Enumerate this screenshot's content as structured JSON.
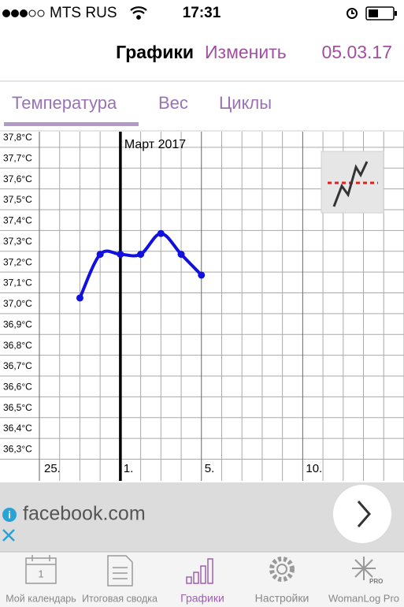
{
  "status": {
    "carrier": "MTS RUS",
    "time": "17:31"
  },
  "header": {
    "title": "Графики",
    "edit": "Изменить",
    "date": "05.03.17"
  },
  "tabs": [
    "Температура",
    "Вес",
    "Циклы"
  ],
  "ad": {
    "text": "facebook.com"
  },
  "tabbar": {
    "items": [
      "Мой календарь",
      "Итоговая сводка",
      "Графики",
      "Настройки",
      "WomanLog Pro"
    ],
    "calendar_day": "1",
    "pro_badge": "PRO"
  },
  "chart_data": {
    "type": "line",
    "annotation": "Март 2017",
    "categories": [
      "25.",
      null,
      null,
      null,
      "1.",
      null,
      null,
      null,
      "5.",
      null,
      null,
      null,
      null,
      "10.",
      null,
      null,
      null,
      null,
      null
    ],
    "series": [
      {
        "color": "#1010e0",
        "values": [
          null,
          null,
          37.03,
          37.24,
          37.24,
          37.24,
          37.34,
          37.24,
          37.14,
          null,
          null,
          null,
          null,
          null,
          null,
          null,
          null,
          null,
          null
        ]
      }
    ],
    "ylim": [
      36.15,
      37.83
    ],
    "yticks": [
      {
        "value": 36.3,
        "label": "36,3°C"
      },
      {
        "value": 36.4,
        "label": "36,4°C"
      },
      {
        "value": 36.5,
        "label": "36,5°C"
      },
      {
        "value": 36.6,
        "label": "36,6°C"
      },
      {
        "value": 36.7,
        "label": "36,7°C"
      },
      {
        "value": 36.8,
        "label": "36,8°C"
      },
      {
        "value": 36.9,
        "label": "36,9°C"
      },
      {
        "value": 37.0,
        "label": "37,0°C"
      },
      {
        "value": 37.1,
        "label": "37,1°C"
      },
      {
        "value": 37.2,
        "label": "37,2°C"
      },
      {
        "value": 37.3,
        "label": "37,3°C"
      },
      {
        "value": 37.4,
        "label": "37,4°C"
      },
      {
        "value": 37.5,
        "label": "37,5°C"
      },
      {
        "value": 37.6,
        "label": "37,6°C"
      },
      {
        "value": 37.7,
        "label": "37,7°C"
      },
      {
        "value": 37.8,
        "label": "37,8°C"
      }
    ],
    "grid": true
  }
}
